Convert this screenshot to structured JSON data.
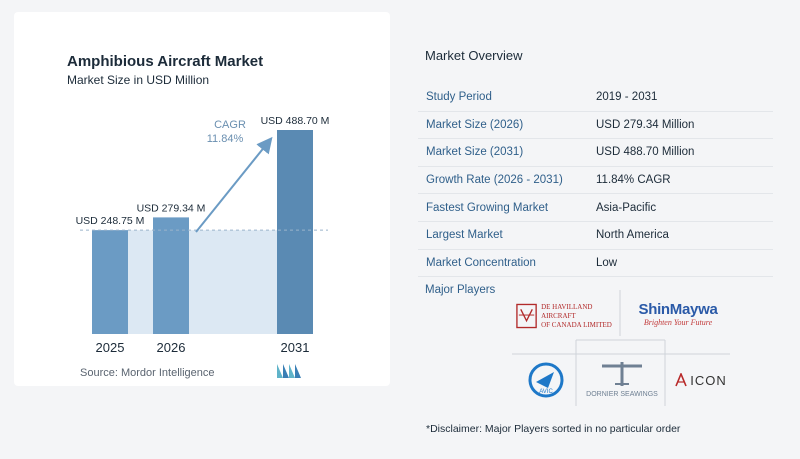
{
  "chart_data": {
    "type": "bar",
    "title": "Amphibious Aircraft Market",
    "subtitle": "Market Size in USD Million",
    "categories": [
      "2025",
      "2026",
      "2031"
    ],
    "values": [
      248.75,
      279.34,
      488.7
    ],
    "value_labels": [
      "USD 248.75 M",
      "USD 279.34 M",
      "USD 488.70 M"
    ],
    "cagr_label": "CAGR",
    "cagr_value": "11.84%",
    "xlabel": "",
    "ylabel": "",
    "ylim": [
      0,
      488.7
    ],
    "grid": false,
    "colors": {
      "bar": "#6b9bc4",
      "bar_dark": "#5a8ab3",
      "shade": "#dce8f3",
      "arrow": "#6b9bc4"
    }
  },
  "source": "Source: Mordor Intelligence",
  "overview": {
    "title": "Market Overview",
    "rows": [
      {
        "key": "Study Period",
        "value": "2019 - 2031"
      },
      {
        "key": "Market Size (2026)",
        "value": "USD 279.34 Million"
      },
      {
        "key": "Market Size (2031)",
        "value": "USD 488.70 Million"
      },
      {
        "key": "Growth Rate (2026 - 2031)",
        "value": "11.84% CAGR"
      },
      {
        "key": "Fastest Growing Market",
        "value": "Asia-Pacific"
      },
      {
        "key": "Largest Market",
        "value": "North America"
      },
      {
        "key": "Market Concentration",
        "value": "Low"
      }
    ]
  },
  "players": {
    "title": "Major Players",
    "logos": {
      "dehavilland_line1": "DE HAVILLAND AIRCRAFT",
      "dehavilland_line2": "OF CANADA LIMITED",
      "shinmaywa": "ShinMaywa",
      "shinmaywa_tagline": "Brighten Your Future",
      "avic": "AVIC",
      "dornier": "DORNIER SEAWINGS",
      "icon": "ICON"
    }
  },
  "disclaimer": "*Disclaimer: Major Players sorted in no particular order"
}
